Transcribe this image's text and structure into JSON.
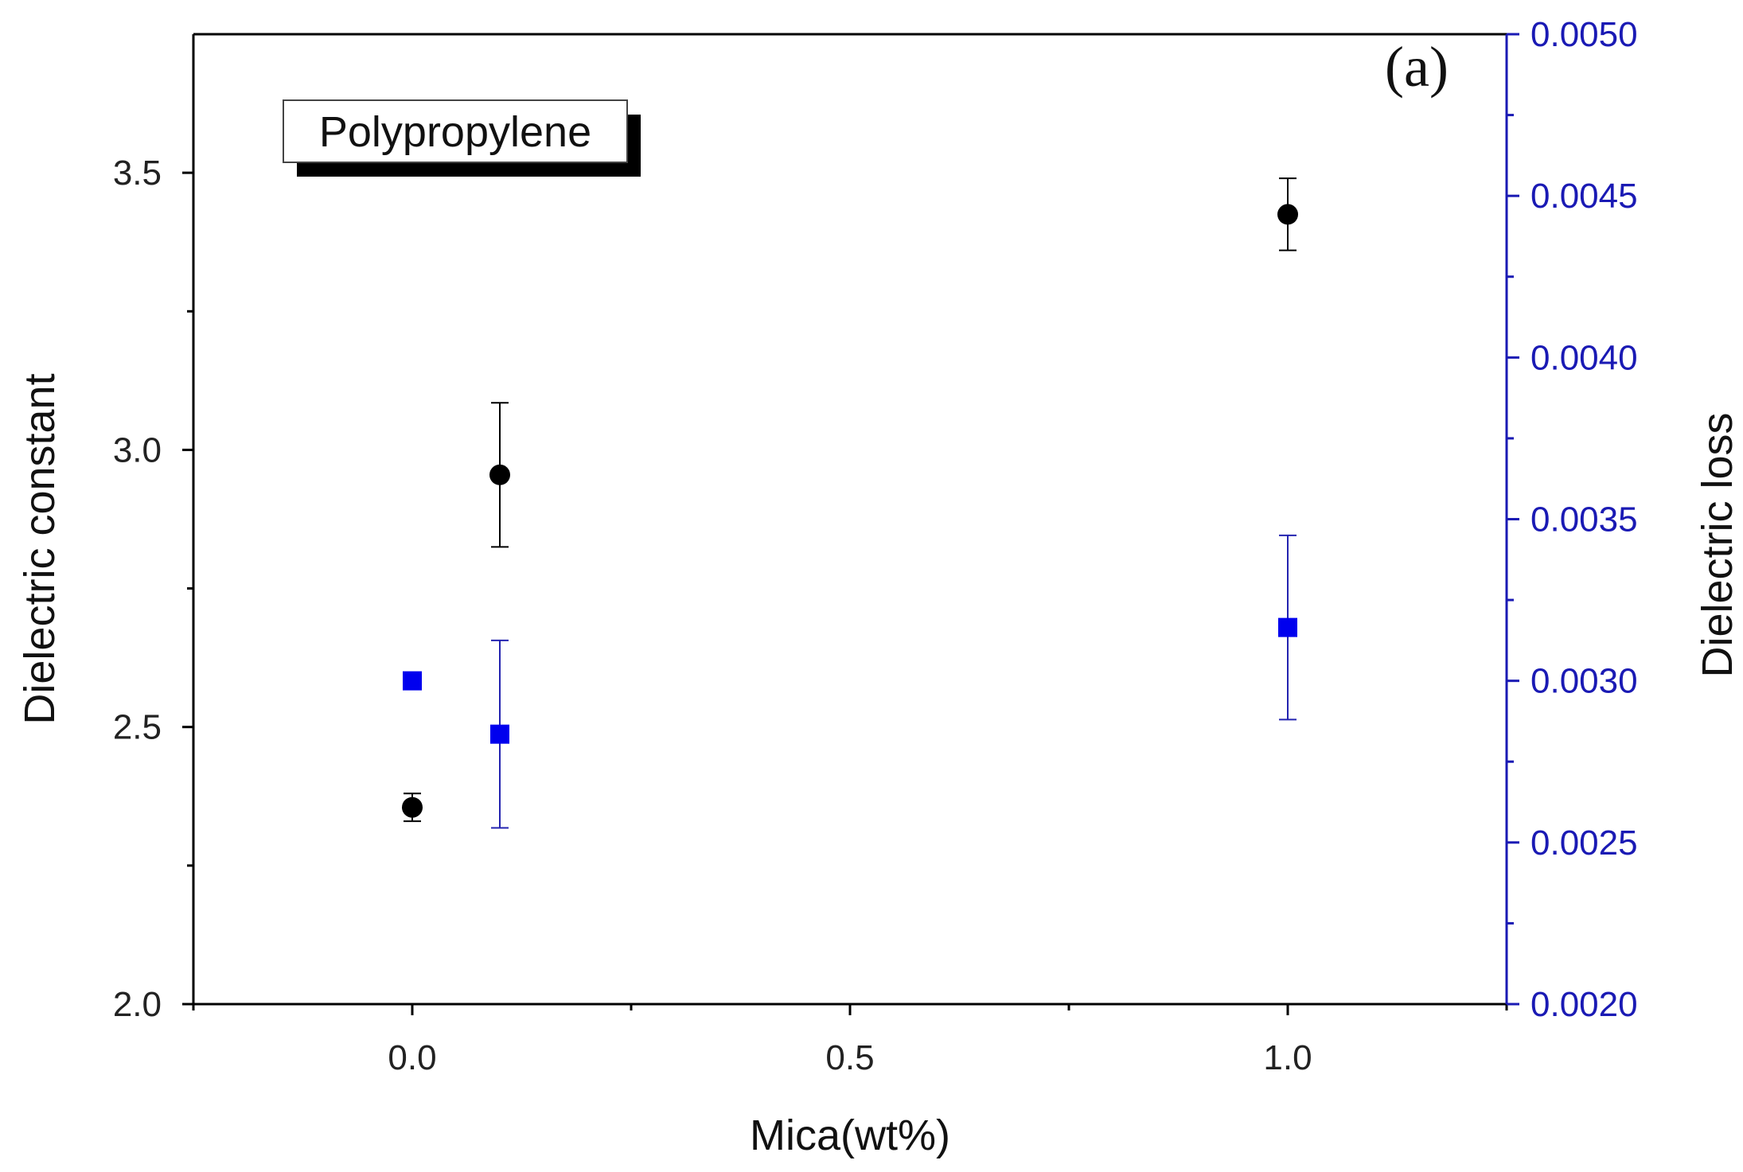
{
  "chart_data": {
    "type": "scatter",
    "panel_label": "(a)",
    "title": "",
    "annotation": "Polypropylene",
    "xlabel": "Mica(wt%)",
    "ylabel_left": "Dielectric constant",
    "ylabel_right": "Dielectric loss",
    "xlim": [
      -0.25,
      1.25
    ],
    "ylim_left": [
      2.0,
      3.75
    ],
    "ylim_right": [
      0.002,
      0.005
    ],
    "x_ticks": [
      {
        "value": 0.0,
        "label": "0.0"
      },
      {
        "value": 0.5,
        "label": "0.5"
      },
      {
        "value": 1.0,
        "label": "1.0"
      }
    ],
    "x_minor_ticks": [
      -0.25,
      0.25,
      0.75,
      1.25
    ],
    "y_left_ticks": [
      {
        "value": 2.0,
        "label": "2.0"
      },
      {
        "value": 2.5,
        "label": "2.5"
      },
      {
        "value": 3.0,
        "label": "3.0"
      },
      {
        "value": 3.5,
        "label": "3.5"
      }
    ],
    "y_left_minor_ticks": [
      2.25,
      2.75,
      3.25
    ],
    "y_right_ticks": [
      {
        "value": 0.002,
        "label": "0.0020"
      },
      {
        "value": 0.0025,
        "label": "0.0025"
      },
      {
        "value": 0.003,
        "label": "0.0030"
      },
      {
        "value": 0.0035,
        "label": "0.0035"
      },
      {
        "value": 0.004,
        "label": "0.0040"
      },
      {
        "value": 0.0045,
        "label": "0.0045"
      },
      {
        "value": 0.005,
        "label": "0.0050"
      }
    ],
    "y_right_minor_ticks": [
      0.00225,
      0.00275,
      0.00325,
      0.00375,
      0.00425,
      0.00475
    ],
    "series": [
      {
        "name": "Dielectric constant",
        "axis": "left",
        "marker": "circle",
        "color": "#000000",
        "points": [
          {
            "x": 0.0,
            "y": 2.355,
            "err": 0.025
          },
          {
            "x": 0.1,
            "y": 2.955,
            "err": 0.13
          },
          {
            "x": 1.0,
            "y": 3.425,
            "err": 0.065
          }
        ]
      },
      {
        "name": "Dielectric loss",
        "axis": "right",
        "marker": "square",
        "color": "#0000ee",
        "points": [
          {
            "x": 0.0,
            "y": 0.003,
            "err": 0
          },
          {
            "x": 0.1,
            "y": 0.002835,
            "err": 0.00029
          },
          {
            "x": 1.0,
            "y": 0.003165,
            "err": 0.000285
          }
        ]
      }
    ],
    "colors": {
      "axis": "#000000",
      "right_axis": "#1a1ab4",
      "errorbar_right": "#2424b0"
    }
  }
}
